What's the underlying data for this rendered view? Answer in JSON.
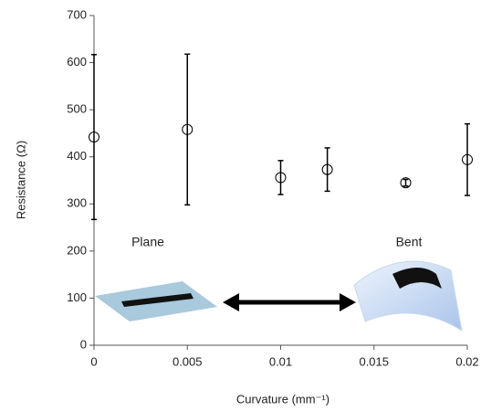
{
  "chart_data": {
    "type": "scatter",
    "x_label": "Curvature (mm⁻¹)",
    "y_label": "Resistance (Ω)",
    "x": [
      0,
      0.005,
      0.01,
      0.0125,
      0.0167,
      0.02
    ],
    "series": [
      {
        "color": "#000000",
        "values": [
          442,
          458,
          356,
          373,
          345,
          394
        ],
        "errors": [
          175,
          160,
          36,
          46,
          7,
          76
        ]
      }
    ],
    "xlim": [
      0,
      0.02
    ],
    "xticks": [
      0,
      0.005,
      0.01,
      0.015,
      0.02
    ],
    "ylim": [
      0,
      700
    ],
    "yticks": [
      0,
      100,
      200,
      300,
      400,
      500,
      600,
      700
    ],
    "annotations": [
      "Plane",
      "Bent"
    ]
  }
}
